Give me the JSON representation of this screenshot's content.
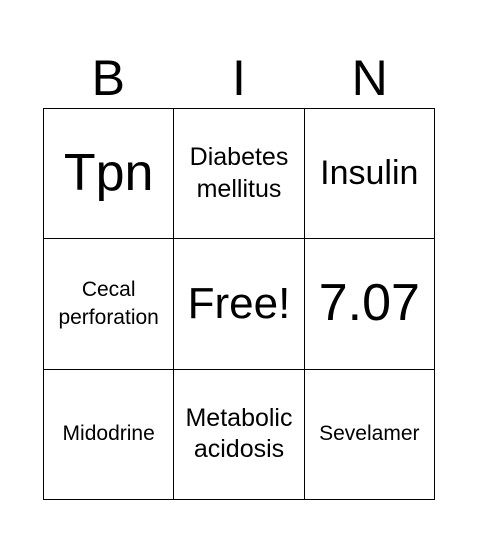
{
  "header": {
    "letters": [
      "B",
      "I",
      "N"
    ]
  },
  "cells": [
    [
      "Tpn",
      "Diabetes mellitus",
      "Insulin"
    ],
    [
      "Cecal perforation",
      "Free!",
      "7.07"
    ],
    [
      "Midodrine",
      "Metabolic acidosis",
      "Sevelamer"
    ]
  ]
}
